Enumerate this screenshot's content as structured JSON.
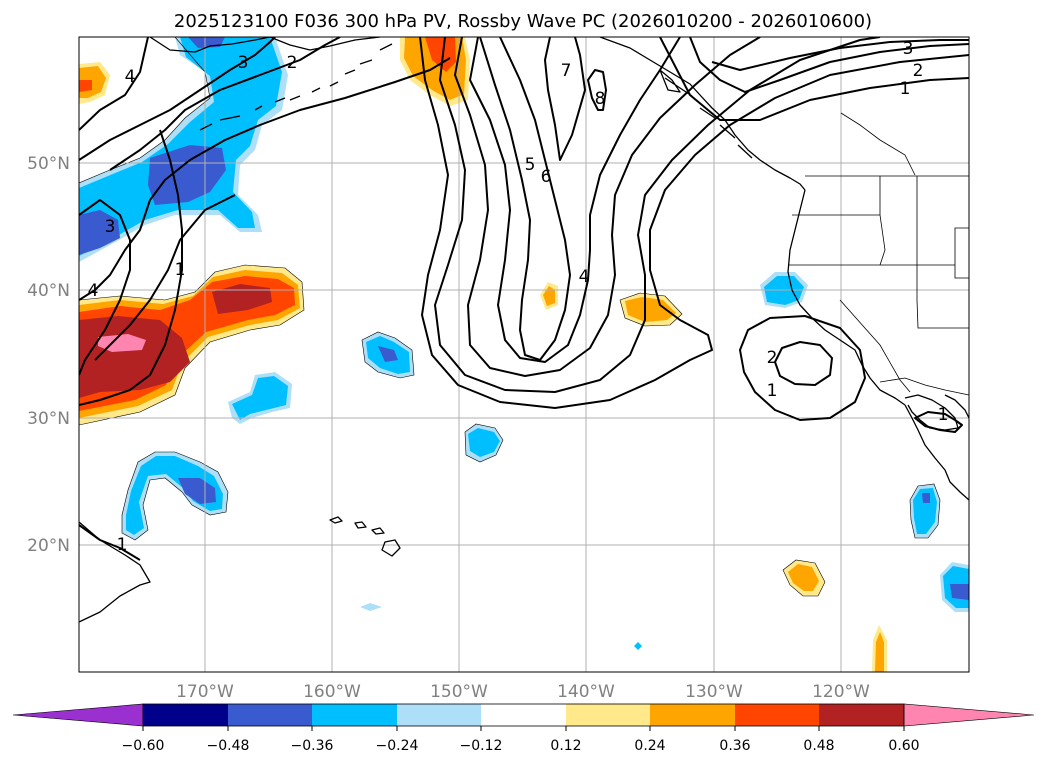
{
  "title": "2025123100 F036 300 hPa PV, Rossby Wave PC (2026010200 - 2026010600)",
  "map": {
    "lon_range": [
      180,
      -110
    ],
    "lat_range": [
      10,
      60
    ],
    "lon_ticks": [
      "170°W",
      "160°W",
      "150°W",
      "140°W",
      "130°W",
      "120°W"
    ],
    "lat_ticks": [
      "50°N",
      "40°N",
      "30°N",
      "20°N"
    ],
    "contour_labels": [
      "4",
      "3",
      "2",
      "3",
      "1",
      "4",
      "5",
      "6",
      "7",
      "8",
      "4",
      "3",
      "2",
      "1",
      "2",
      "1",
      "1",
      "1"
    ]
  },
  "colorbar": {
    "levels": [
      "−0.60",
      "−0.48",
      "−0.36",
      "−0.24",
      "−0.12",
      "0.12",
      "0.24",
      "0.36",
      "0.48",
      "0.60"
    ],
    "colors": {
      "under": "#9b30d0",
      "b1": "#00008b",
      "b2": "#3a5bd0",
      "b3": "#00bfff",
      "b4": "#ade0f8",
      "b5": "#ffffff",
      "b6": "#ffe98a",
      "b7": "#ffa500",
      "b8": "#ff4500",
      "b9": "#b22222",
      "over": "#ff85b0"
    }
  }
}
